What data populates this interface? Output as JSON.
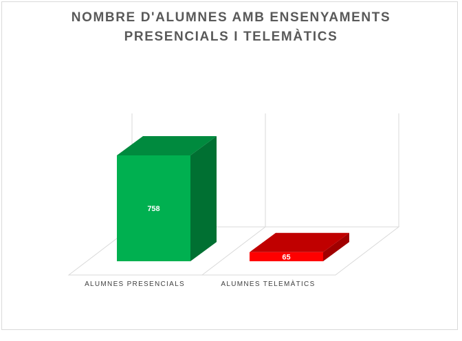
{
  "chart_data": {
    "type": "bar",
    "title": [
      "NOMBRE D'ALUMNES AMB ENSENYAMENTS",
      "PRESENCIALS I TELEMÀTICS"
    ],
    "categories": [
      "ALUMNES PRESENCIALS",
      "ALUMNES TELEMÀTICS"
    ],
    "values": [
      758,
      65
    ],
    "data_labels": [
      "758",
      "65"
    ],
    "colors": {
      "front": [
        "#00b050",
        "#ff0000"
      ],
      "top": [
        "#008a3e",
        "#c00000"
      ],
      "side": [
        "#007032",
        "#a00000"
      ]
    },
    "ylim": [
      0,
      800
    ],
    "grid": false,
    "legend": "none",
    "style": "3d-column"
  }
}
